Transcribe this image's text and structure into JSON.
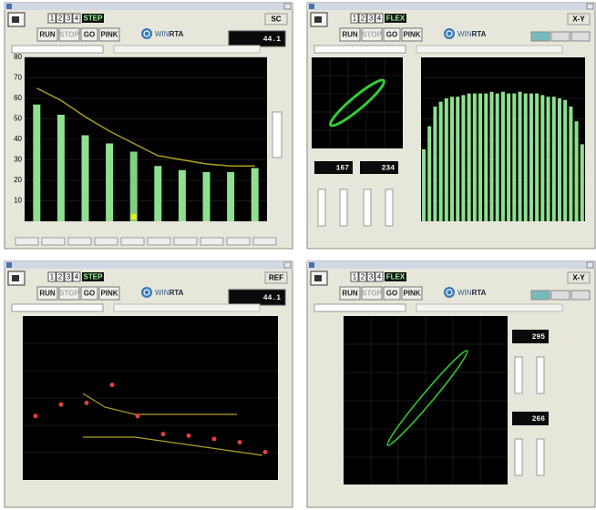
{
  "windows": [
    {
      "mode": "STEP",
      "presets": [
        "1",
        "2",
        "3",
        "4"
      ],
      "buttons": [
        "RUN",
        "STOP",
        "GO",
        "PINK"
      ],
      "logo": [
        "WIN",
        "RTA"
      ],
      "display": "44.1",
      "corner": "SC",
      "chart": {
        "type": "bar",
        "values": [
          57,
          52,
          42,
          38,
          34,
          27,
          25,
          24,
          24,
          26
        ],
        "line": [
          65,
          59,
          51,
          44,
          38,
          32,
          30,
          28,
          27,
          27
        ],
        "ylim": [
          0,
          80
        ],
        "yticks": [
          10,
          20,
          30,
          40,
          50,
          60,
          70,
          80
        ],
        "color": "#8ee08e",
        "line_color": "#b0a020"
      }
    },
    {
      "mode": "FLEX",
      "presets": [
        "1",
        "2",
        "3",
        "4"
      ],
      "buttons": [
        "RUN",
        "STOP",
        "GO",
        "PINK"
      ],
      "logo": [
        "WIN",
        "RTA"
      ],
      "corner": "X-Y",
      "readouts": [
        "167",
        "234"
      ],
      "chart": {
        "type": "spectrum",
        "values": [
          44,
          58,
          70,
          73,
          75,
          76,
          76,
          77,
          78,
          78,
          78,
          78,
          79,
          78,
          79,
          78,
          78,
          79,
          78,
          78,
          78,
          77,
          76,
          76,
          75,
          74,
          70,
          61,
          47
        ],
        "ylim": [
          0,
          100
        ],
        "color": "#8ee08e"
      }
    },
    {
      "mode": "STEP",
      "presets": [
        "1",
        "2",
        "3",
        "4"
      ],
      "buttons": [
        "RUN",
        "STOP",
        "GO",
        "PINK"
      ],
      "logo": [
        "WIN",
        "RTA"
      ],
      "display": "44.1",
      "corner": "REF",
      "chart": {
        "type": "points",
        "values": [
          39,
          46,
          47,
          58,
          39,
          28,
          27,
          25,
          23,
          17
        ],
        "ylim": [
          0,
          100
        ],
        "color": "#e04040"
      }
    },
    {
      "mode": "FLEX",
      "presets": [
        "1",
        "2",
        "3",
        "4"
      ],
      "buttons": [
        "RUN",
        "STOP",
        "GO",
        "PINK"
      ],
      "logo": [
        "WIN",
        "RTA"
      ],
      "corner": "X-Y",
      "readouts": [
        "295",
        "266"
      ],
      "chart": {
        "type": "xy"
      }
    }
  ]
}
